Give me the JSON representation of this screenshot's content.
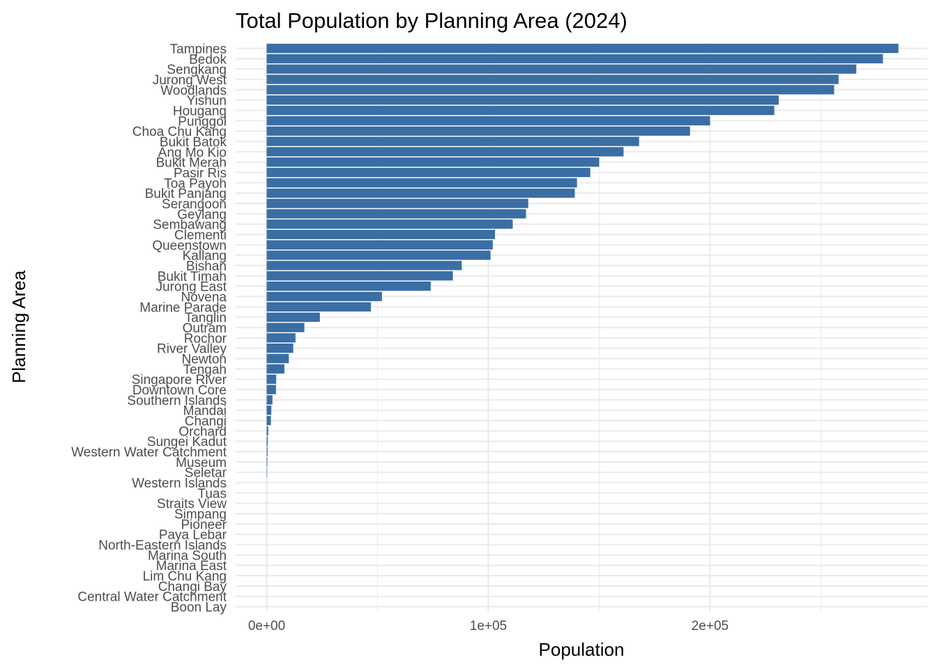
{
  "chart_data": {
    "type": "bar",
    "orientation": "horizontal",
    "title": "Total Population by Planning Area (2024)",
    "xlabel": "Population",
    "ylabel": "Planning Area",
    "xlim": [
      -14000,
      298000
    ],
    "x_ticks": [
      {
        "value": 0,
        "label": "0e+00"
      },
      {
        "value": 100000,
        "label": "1e+05"
      },
      {
        "value": 200000,
        "label": "2e+05"
      }
    ],
    "x_minor_ticks": [
      50000,
      150000,
      250000
    ],
    "grid": true,
    "legend": "none",
    "bar_color": "#3a6ea5",
    "grid_color": "#ebebeb",
    "categories": [
      "Tampines",
      "Bedok",
      "Sengkang",
      "Jurong West",
      "Woodlands",
      "Yishun",
      "Hougang",
      "Punggol",
      "Choa Chu Kang",
      "Bukit Batok",
      "Ang Mo Kio",
      "Bukit Merah",
      "Pasir Ris",
      "Toa Payoh",
      "Bukit Panjang",
      "Serangoon",
      "Geylang",
      "Sembawang",
      "Clementi",
      "Queenstown",
      "Kallang",
      "Bishan",
      "Bukit Timah",
      "Jurong East",
      "Novena",
      "Marine Parade",
      "Tanglin",
      "Outram",
      "Rochor",
      "River Valley",
      "Newton",
      "Tengah",
      "Singapore River",
      "Downtown Core",
      "Southern Islands",
      "Mandai",
      "Changi",
      "Orchard",
      "Sungei Kadut",
      "Western Water Catchment",
      "Museum",
      "Seletar",
      "Western Islands",
      "Tuas",
      "Straits View",
      "Simpang",
      "Pioneer",
      "Paya Lebar",
      "North-Eastern Islands",
      "Marina South",
      "Marina East",
      "Lim Chu Kang",
      "Changi Bay",
      "Central Water Catchment",
      "Boon Lay"
    ],
    "values": [
      285000,
      278000,
      266000,
      258000,
      256000,
      231000,
      229000,
      200000,
      191000,
      168000,
      161000,
      150000,
      146000,
      140000,
      139000,
      118000,
      117000,
      111000,
      103000,
      102000,
      101000,
      88000,
      84000,
      74000,
      52000,
      47000,
      24000,
      17000,
      13000,
      12000,
      10000,
      8000,
      4300,
      4200,
      2600,
      2100,
      1900,
      700,
      500,
      400,
      300,
      200,
      0,
      0,
      0,
      0,
      0,
      0,
      0,
      0,
      0,
      0,
      0,
      0,
      0
    ]
  }
}
